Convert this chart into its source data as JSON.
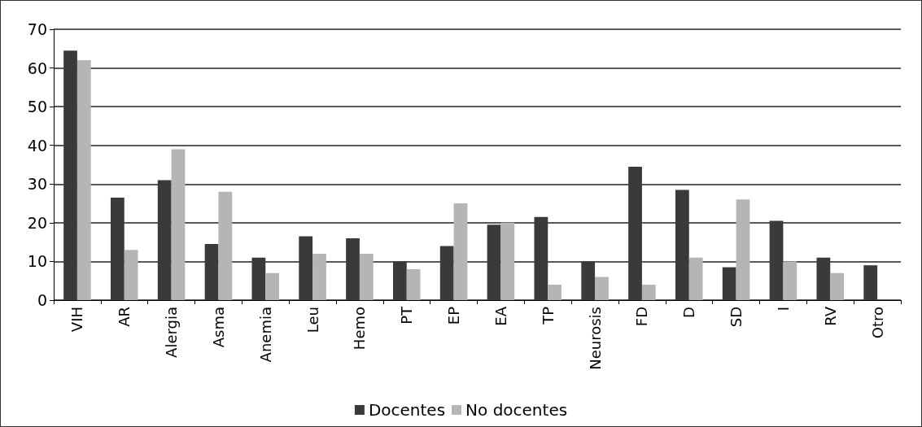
{
  "chart_data": {
    "type": "bar",
    "categories": [
      "VIH",
      "AR",
      "Alergia",
      "Asma",
      "Anemia",
      "Leu",
      "Hemo",
      "PT",
      "EP",
      "EA",
      "TP",
      "Neurosis",
      "FD",
      "D",
      "SD",
      "I",
      "RV",
      "Otro"
    ],
    "series": [
      {
        "name": "Docentes",
        "color": "#3a3a3a",
        "values": [
          64.5,
          26.5,
          31,
          14.5,
          11,
          16.5,
          16,
          10,
          14,
          19.5,
          21.5,
          10,
          34.5,
          28.5,
          8.5,
          20.5,
          11,
          9
        ]
      },
      {
        "name": "No docentes",
        "color": "#b5b5b5",
        "values": [
          62,
          13,
          39,
          28,
          7,
          12,
          12,
          8,
          25,
          20,
          4,
          6,
          4,
          11,
          26,
          10,
          7,
          null
        ]
      }
    ],
    "ylim": [
      0,
      70
    ],
    "yticks": [
      0,
      10,
      20,
      30,
      40,
      50,
      60,
      70
    ],
    "grid": "y",
    "legend": "bottom"
  }
}
